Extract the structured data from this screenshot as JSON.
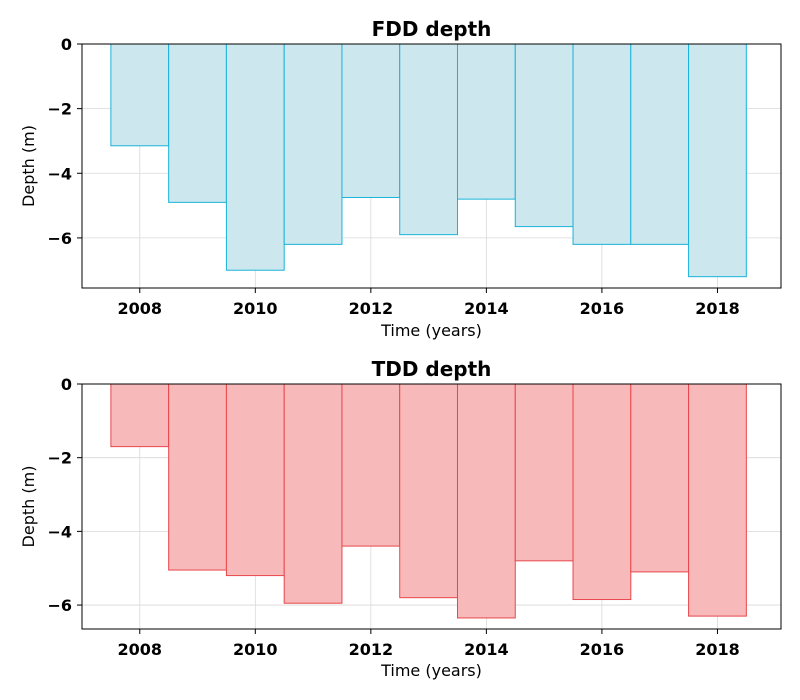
{
  "colors": {
    "fdd_fill": "#cce7ed",
    "fdd_edge": "#1ab3d9",
    "tdd_fill": "#f7b9b9",
    "tdd_edge": "#e8474b"
  },
  "chart_data": [
    {
      "type": "bar",
      "title": "FDD depth",
      "xlabel": "Time (years)",
      "ylabel": "Depth (m)",
      "x": [
        2008,
        2009,
        2010,
        2011,
        2012,
        2013,
        2014,
        2015,
        2016,
        2017,
        2018
      ],
      "values": [
        -3.15,
        -4.9,
        -7.0,
        -6.2,
        -4.75,
        -5.9,
        -4.8,
        -5.65,
        -6.2,
        -6.2,
        -7.2
      ],
      "xlim": [
        2007.0,
        2019.1
      ],
      "ylim": [
        -7.55,
        0
      ],
      "xticks": [
        2008,
        2010,
        2012,
        2014,
        2016,
        2018
      ],
      "yticks": [
        0,
        -2,
        -4,
        -6
      ],
      "ytick_labels": [
        "0",
        "−2",
        "−4",
        "−6"
      ],
      "grid": true,
      "fill_color": "#cce7ed",
      "edge_color": "#1ab3d9"
    },
    {
      "type": "bar",
      "title": "TDD depth",
      "xlabel": "Time (years)",
      "ylabel": "Depth (m)",
      "x": [
        2008,
        2009,
        2010,
        2011,
        2012,
        2013,
        2014,
        2015,
        2016,
        2017,
        2018
      ],
      "values": [
        -1.7,
        -5.05,
        -5.2,
        -5.95,
        -4.4,
        -5.8,
        -6.35,
        -4.8,
        -5.85,
        -5.1,
        -6.3
      ],
      "xlim": [
        2007.0,
        2019.1
      ],
      "ylim": [
        -6.65,
        0
      ],
      "xticks": [
        2008,
        2010,
        2012,
        2014,
        2016,
        2018
      ],
      "yticks": [
        0,
        -2,
        -4,
        -6
      ],
      "ytick_labels": [
        "0",
        "−2",
        "−4",
        "−6"
      ],
      "grid": true,
      "fill_color": "#f7b9b9",
      "edge_color": "#e8474b"
    }
  ]
}
